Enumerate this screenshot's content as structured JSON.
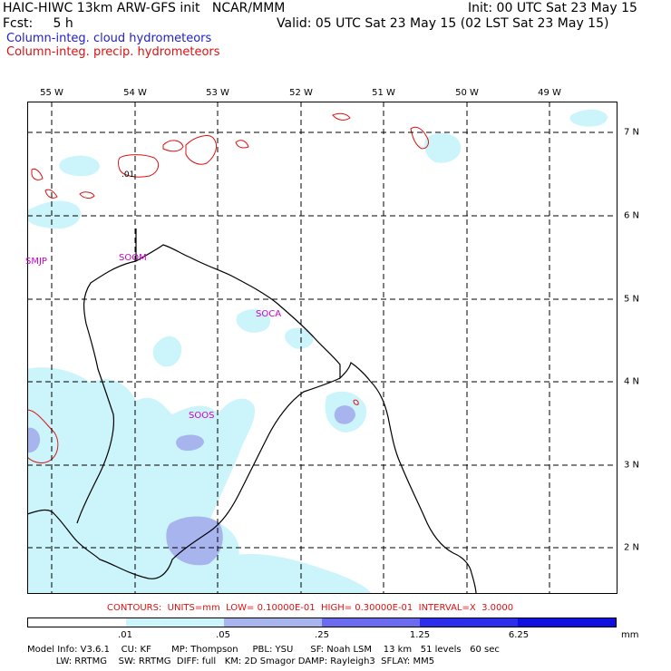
{
  "header": {
    "title": "HAIC-HIWC 13km ARW-GFS init   NCAR/MMM",
    "fcst": "Fcst:     5 h",
    "init": "Init: 00 UTC Sat 23 May 15",
    "valid": "Valid: 05 UTC Sat 23 May 15 (02 LST Sat 23 May 15)",
    "legend_cloud": "Column-integ. cloud hydrometeors",
    "legend_precip": "Column-integ. precip. hydrometeors"
  },
  "axes": {
    "lon_labels": [
      "55 W",
      "54 W",
      "53 W",
      "52 W",
      "51 W",
      "50 W",
      "49 W"
    ],
    "lat_labels": [
      "7 N",
      "6 N",
      "5 N",
      "4 N",
      "3 N",
      "2 N"
    ]
  },
  "stations": [
    "SMJP",
    "SOOM",
    "SOCA",
    "SOOS"
  ],
  "contour_label": ".01",
  "contour_info": "CONTOURS:  UNITS=mm  LOW= 0.10000E-01  HIGH= 0.30000E-01  INTERVAL=X  3.0000",
  "colorbar": {
    "labels": [
      ".01",
      ".05",
      ".25",
      "1.25",
      "6.25"
    ],
    "units": "mm",
    "colors": [
      "#ffffff",
      "#ccf4fb",
      "#a8b4ee",
      "#6b6bf0",
      "#2d2dec",
      "#1010e0"
    ]
  },
  "colors": {
    "cloud_legend": "#2020cc",
    "precip_legend": "#dd1111",
    "station": "#cc00cc"
  },
  "footer": {
    "line1": "Model Info: V3.6.1    CU: KF       MP: Thompson     PBL: YSU      SF: Noah LSM    13 km   51 levels   60 sec",
    "line2": "          LW: RRTMG    SW: RRTMG  DIFF: full   KM: 2D Smagor DAMP: Rayleigh3  SFLAY: MM5"
  }
}
